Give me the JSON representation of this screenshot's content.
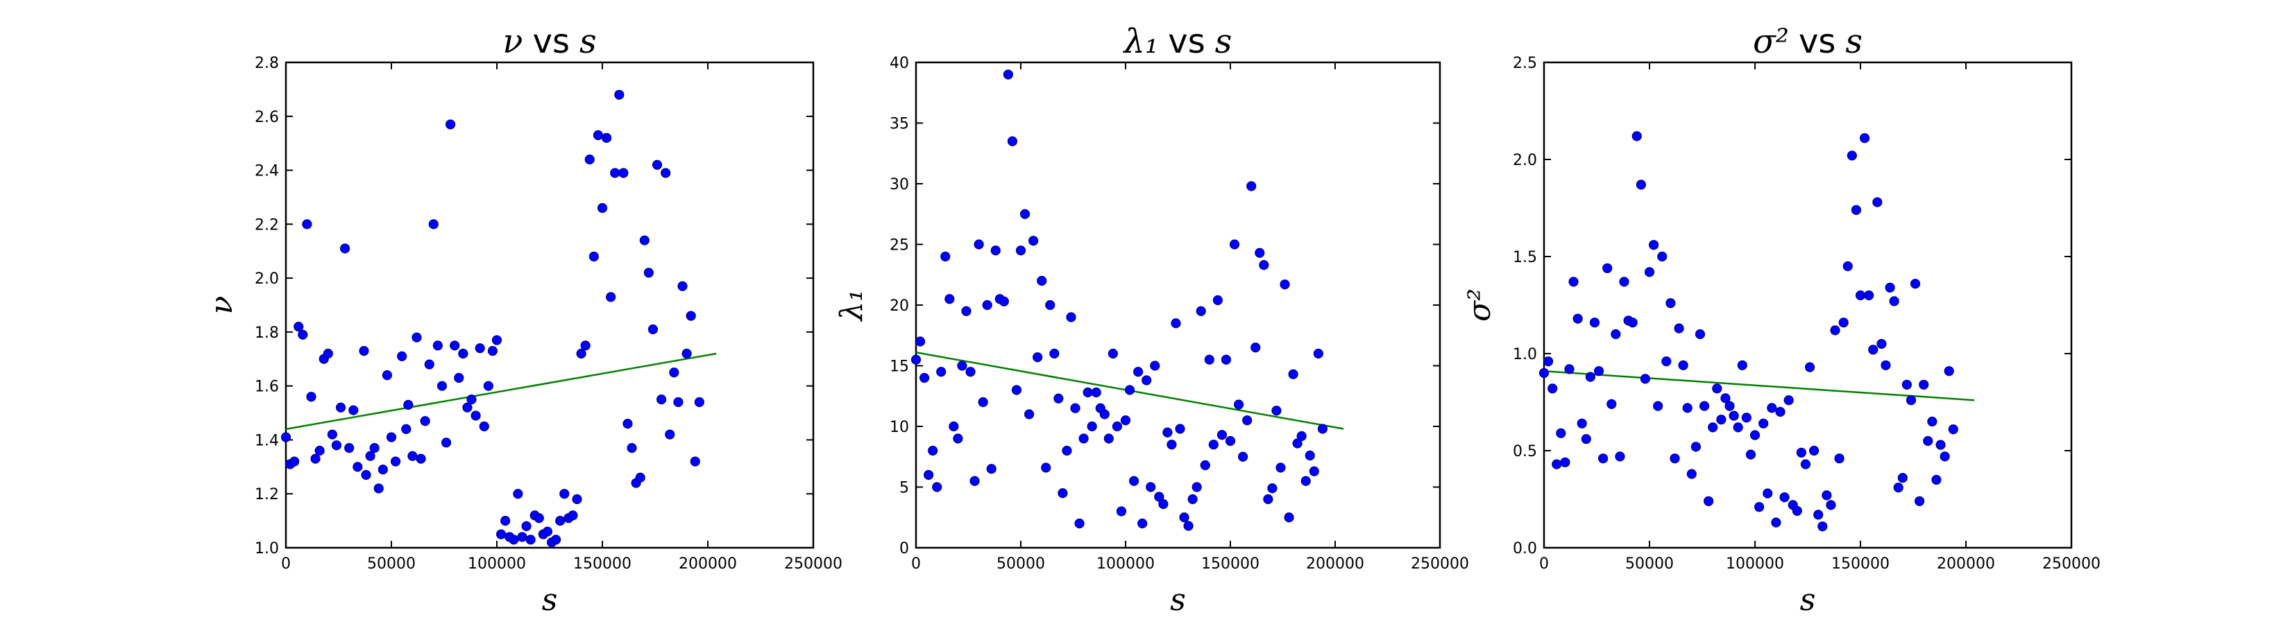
{
  "chart_data": [
    {
      "type": "scatter",
      "title_math": "ν",
      "title_text": "vs",
      "title_var": "s",
      "xlabel": "s",
      "ylabel": "ν",
      "xlim": [
        0,
        250000
      ],
      "ylim": [
        1.0,
        2.8
      ],
      "xticks": [
        0,
        50000,
        100000,
        150000,
        200000,
        250000
      ],
      "yticks": [
        1.0,
        1.2,
        1.4,
        1.6,
        1.8,
        2.0,
        2.2,
        2.4,
        2.6,
        2.8
      ],
      "ytick_labels": [
        "1.0",
        "1.2",
        "1.4",
        "1.6",
        "1.8",
        "2.0",
        "2.2",
        "2.4",
        "2.6",
        "2.8"
      ],
      "points": [
        [
          0,
          1.41
        ],
        [
          2000,
          1.31
        ],
        [
          4000,
          1.32
        ],
        [
          6000,
          1.82
        ],
        [
          8000,
          1.79
        ],
        [
          10000,
          2.2
        ],
        [
          12000,
          1.56
        ],
        [
          14000,
          1.33
        ],
        [
          16000,
          1.36
        ],
        [
          18000,
          1.7
        ],
        [
          20000,
          1.72
        ],
        [
          22000,
          1.42
        ],
        [
          24000,
          1.38
        ],
        [
          26000,
          1.52
        ],
        [
          28000,
          2.11
        ],
        [
          30000,
          1.37
        ],
        [
          32000,
          1.51
        ],
        [
          34000,
          1.3
        ],
        [
          37000,
          1.73
        ],
        [
          38000,
          1.27
        ],
        [
          40000,
          1.34
        ],
        [
          42000,
          1.37
        ],
        [
          44000,
          1.22
        ],
        [
          46000,
          1.29
        ],
        [
          48000,
          1.64
        ],
        [
          50000,
          1.41
        ],
        [
          52000,
          1.32
        ],
        [
          55000,
          1.71
        ],
        [
          57000,
          1.44
        ],
        [
          58000,
          1.53
        ],
        [
          60000,
          1.34
        ],
        [
          62000,
          1.78
        ],
        [
          64000,
          1.33
        ],
        [
          66000,
          1.47
        ],
        [
          68000,
          1.68
        ],
        [
          70000,
          2.2
        ],
        [
          72000,
          1.75
        ],
        [
          74000,
          1.6
        ],
        [
          76000,
          1.39
        ],
        [
          78000,
          2.57
        ],
        [
          80000,
          1.75
        ],
        [
          82000,
          1.63
        ],
        [
          84000,
          1.72
        ],
        [
          86000,
          1.52
        ],
        [
          88000,
          1.55
        ],
        [
          90000,
          1.49
        ],
        [
          92000,
          1.74
        ],
        [
          94000,
          1.45
        ],
        [
          96000,
          1.6
        ],
        [
          98000,
          1.73
        ],
        [
          100000,
          1.77
        ],
        [
          102000,
          1.05
        ],
        [
          104000,
          1.1
        ],
        [
          106000,
          1.04
        ],
        [
          108000,
          1.03
        ],
        [
          110000,
          1.2
        ],
        [
          112000,
          1.04
        ],
        [
          114000,
          1.08
        ],
        [
          116000,
          1.03
        ],
        [
          118000,
          1.12
        ],
        [
          120000,
          1.11
        ],
        [
          122000,
          1.05
        ],
        [
          124000,
          1.06
        ],
        [
          126000,
          1.02
        ],
        [
          128000,
          1.03
        ],
        [
          130000,
          1.1
        ],
        [
          132000,
          1.2
        ],
        [
          134000,
          1.11
        ],
        [
          136000,
          1.12
        ],
        [
          138000,
          1.18
        ],
        [
          140000,
          1.72
        ],
        [
          142000,
          1.75
        ],
        [
          144000,
          2.44
        ],
        [
          146000,
          2.08
        ],
        [
          148000,
          2.53
        ],
        [
          150000,
          2.26
        ],
        [
          152000,
          2.52
        ],
        [
          154000,
          1.93
        ],
        [
          156000,
          2.39
        ],
        [
          158000,
          2.68
        ],
        [
          160000,
          2.39
        ],
        [
          162000,
          1.46
        ],
        [
          164000,
          1.37
        ],
        [
          166000,
          1.24
        ],
        [
          168000,
          1.26
        ],
        [
          170000,
          2.14
        ],
        [
          172000,
          2.02
        ],
        [
          174000,
          1.81
        ],
        [
          176000,
          2.42
        ],
        [
          178000,
          1.55
        ],
        [
          180000,
          2.39
        ],
        [
          182000,
          1.42
        ],
        [
          184000,
          1.65
        ],
        [
          186000,
          1.54
        ],
        [
          188000,
          1.97
        ],
        [
          190000,
          1.72
        ],
        [
          192000,
          1.86
        ],
        [
          194000,
          1.32
        ],
        [
          196000,
          1.54
        ]
      ],
      "fit": [
        [
          0,
          1.44
        ],
        [
          204000,
          1.72
        ]
      ]
    },
    {
      "type": "scatter",
      "title_math": "λ₁",
      "title_text": "vs",
      "title_var": "s",
      "xlabel": "s",
      "ylabel": "λ₁",
      "xlim": [
        0,
        250000
      ],
      "ylim": [
        0,
        40
      ],
      "xticks": [
        0,
        50000,
        100000,
        150000,
        200000,
        250000
      ],
      "yticks": [
        0,
        5,
        10,
        15,
        20,
        25,
        30,
        35,
        40
      ],
      "ytick_labels": [
        "0",
        "5",
        "10",
        "15",
        "20",
        "25",
        "30",
        "35",
        "40"
      ],
      "points": [
        [
          0,
          15.5
        ],
        [
          2000,
          17
        ],
        [
          4000,
          14
        ],
        [
          6000,
          6
        ],
        [
          8000,
          8
        ],
        [
          10000,
          5
        ],
        [
          12000,
          14.5
        ],
        [
          14000,
          24
        ],
        [
          16000,
          20.5
        ],
        [
          18000,
          10
        ],
        [
          20000,
          9
        ],
        [
          22000,
          15
        ],
        [
          24000,
          19.5
        ],
        [
          26000,
          14.5
        ],
        [
          28000,
          5.5
        ],
        [
          30000,
          25
        ],
        [
          32000,
          12
        ],
        [
          34000,
          20
        ],
        [
          36000,
          6.5
        ],
        [
          38000,
          24.5
        ],
        [
          40000,
          20.5
        ],
        [
          42000,
          20.3
        ],
        [
          44000,
          39
        ],
        [
          46000,
          33.5
        ],
        [
          48000,
          13
        ],
        [
          50000,
          24.5
        ],
        [
          52000,
          27.5
        ],
        [
          54000,
          11
        ],
        [
          56000,
          25.3
        ],
        [
          58000,
          15.7
        ],
        [
          60000,
          22
        ],
        [
          62000,
          6.6
        ],
        [
          64000,
          20
        ],
        [
          66000,
          16
        ],
        [
          68000,
          12.3
        ],
        [
          70000,
          4.5
        ],
        [
          72000,
          8
        ],
        [
          74000,
          19
        ],
        [
          76000,
          11.5
        ],
        [
          78000,
          2
        ],
        [
          80000,
          9
        ],
        [
          82000,
          12.8
        ],
        [
          84000,
          10
        ],
        [
          86000,
          12.8
        ],
        [
          88000,
          11.5
        ],
        [
          90000,
          11
        ],
        [
          92000,
          9
        ],
        [
          94000,
          16
        ],
        [
          96000,
          10
        ],
        [
          98000,
          3
        ],
        [
          100000,
          10.5
        ],
        [
          102000,
          13
        ],
        [
          104000,
          5.5
        ],
        [
          106000,
          14.5
        ],
        [
          108000,
          2
        ],
        [
          110000,
          13.8
        ],
        [
          112000,
          5
        ],
        [
          114000,
          15
        ],
        [
          116000,
          4.2
        ],
        [
          118000,
          3.6
        ],
        [
          120000,
          9.5
        ],
        [
          122000,
          8.5
        ],
        [
          124000,
          18.5
        ],
        [
          126000,
          9.8
        ],
        [
          128000,
          2.5
        ],
        [
          130000,
          1.8
        ],
        [
          132000,
          4
        ],
        [
          134000,
          5
        ],
        [
          136000,
          19.5
        ],
        [
          138000,
          6.8
        ],
        [
          140000,
          15.5
        ],
        [
          142000,
          8.5
        ],
        [
          144000,
          20.4
        ],
        [
          146000,
          9.3
        ],
        [
          148000,
          15.5
        ],
        [
          150000,
          8.8
        ],
        [
          152000,
          25
        ],
        [
          154000,
          11.8
        ],
        [
          156000,
          7.5
        ],
        [
          158000,
          10.5
        ],
        [
          160000,
          29.8
        ],
        [
          162000,
          16.5
        ],
        [
          164000,
          24.3
        ],
        [
          166000,
          23.3
        ],
        [
          168000,
          4
        ],
        [
          170000,
          4.9
        ],
        [
          172000,
          11.3
        ],
        [
          174000,
          6.6
        ],
        [
          176000,
          21.7
        ],
        [
          178000,
          2.5
        ],
        [
          180000,
          14.3
        ],
        [
          182000,
          8.6
        ],
        [
          184000,
          9.2
        ],
        [
          186000,
          5.5
        ],
        [
          188000,
          7.6
        ],
        [
          190000,
          6.3
        ],
        [
          192000,
          16
        ],
        [
          194000,
          9.8
        ]
      ],
      "fit": [
        [
          0,
          16.1
        ],
        [
          204000,
          9.8
        ]
      ]
    },
    {
      "type": "scatter",
      "title_math": "σ²",
      "title_text": "vs",
      "title_var": "s",
      "xlabel": "s",
      "ylabel": "σ²",
      "xlim": [
        0,
        250000
      ],
      "ylim": [
        0,
        2.5
      ],
      "xticks": [
        0,
        50000,
        100000,
        150000,
        200000,
        250000
      ],
      "yticks": [
        0,
        0.5,
        1.0,
        1.5,
        2.0,
        2.5
      ],
      "ytick_labels": [
        "0.0",
        "0.5",
        "1.0",
        "1.5",
        "2.0",
        "2.5"
      ],
      "points": [
        [
          0,
          0.9
        ],
        [
          2000,
          0.96
        ],
        [
          4000,
          0.82
        ],
        [
          6000,
          0.43
        ],
        [
          8000,
          0.59
        ],
        [
          10000,
          0.44
        ],
        [
          12000,
          0.92
        ],
        [
          14000,
          1.37
        ],
        [
          16000,
          1.18
        ],
        [
          18000,
          0.64
        ],
        [
          20000,
          0.56
        ],
        [
          22000,
          0.88
        ],
        [
          24000,
          1.16
        ],
        [
          26000,
          0.91
        ],
        [
          28000,
          0.46
        ],
        [
          30000,
          1.44
        ],
        [
          32000,
          0.74
        ],
        [
          34000,
          1.1
        ],
        [
          36000,
          0.47
        ],
        [
          38000,
          1.37
        ],
        [
          40000,
          1.17
        ],
        [
          42000,
          1.16
        ],
        [
          44000,
          2.12
        ],
        [
          46000,
          1.87
        ],
        [
          48000,
          0.87
        ],
        [
          50000,
          1.42
        ],
        [
          52000,
          1.56
        ],
        [
          54000,
          0.73
        ],
        [
          56000,
          1.5
        ],
        [
          58000,
          0.96
        ],
        [
          60000,
          1.26
        ],
        [
          62000,
          0.46
        ],
        [
          64000,
          1.13
        ],
        [
          66000,
          0.94
        ],
        [
          68000,
          0.72
        ],
        [
          70000,
          0.38
        ],
        [
          72000,
          0.52
        ],
        [
          74000,
          1.1
        ],
        [
          76000,
          0.73
        ],
        [
          78000,
          0.24
        ],
        [
          80000,
          0.62
        ],
        [
          82000,
          0.82
        ],
        [
          84000,
          0.66
        ],
        [
          86000,
          0.77
        ],
        [
          88000,
          0.73
        ],
        [
          90000,
          0.68
        ],
        [
          92000,
          0.62
        ],
        [
          94000,
          0.94
        ],
        [
          96000,
          0.67
        ],
        [
          98000,
          0.48
        ],
        [
          100000,
          0.58
        ],
        [
          102000,
          0.21
        ],
        [
          104000,
          0.64
        ],
        [
          106000,
          0.28
        ],
        [
          108000,
          0.72
        ],
        [
          110000,
          0.13
        ],
        [
          112000,
          0.7
        ],
        [
          114000,
          0.26
        ],
        [
          116000,
          0.76
        ],
        [
          118000,
          0.22
        ],
        [
          120000,
          0.19
        ],
        [
          122000,
          0.49
        ],
        [
          124000,
          0.43
        ],
        [
          126000,
          0.93
        ],
        [
          128000,
          0.5
        ],
        [
          130000,
          0.17
        ],
        [
          132000,
          0.11
        ],
        [
          134000,
          0.27
        ],
        [
          136000,
          0.22
        ],
        [
          138000,
          1.12
        ],
        [
          140000,
          0.46
        ],
        [
          142000,
          1.16
        ],
        [
          144000,
          1.45
        ],
        [
          146000,
          2.02
        ],
        [
          148000,
          1.74
        ],
        [
          150000,
          1.3
        ],
        [
          152000,
          2.11
        ],
        [
          154000,
          1.3
        ],
        [
          156000,
          1.02
        ],
        [
          158000,
          1.78
        ],
        [
          160000,
          1.05
        ],
        [
          162000,
          0.94
        ],
        [
          164000,
          1.34
        ],
        [
          166000,
          1.27
        ],
        [
          168000,
          0.31
        ],
        [
          170000,
          0.36
        ],
        [
          172000,
          0.84
        ],
        [
          174000,
          0.76
        ],
        [
          176000,
          1.36
        ],
        [
          178000,
          0.24
        ],
        [
          180000,
          0.84
        ],
        [
          182000,
          0.55
        ],
        [
          184000,
          0.65
        ],
        [
          186000,
          0.35
        ],
        [
          188000,
          0.53
        ],
        [
          190000,
          0.47
        ],
        [
          192000,
          0.91
        ],
        [
          194000,
          0.61
        ]
      ],
      "fit": [
        [
          0,
          0.91
        ],
        [
          204000,
          0.76
        ]
      ]
    }
  ]
}
